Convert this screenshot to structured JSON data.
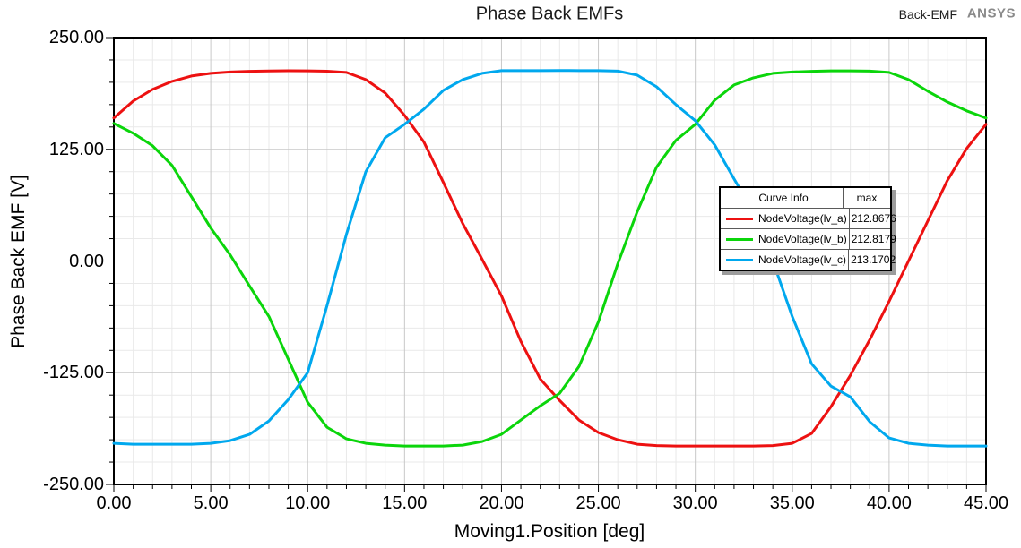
{
  "header": {
    "title": "Phase Back EMFs",
    "design_label": "Back-EMF",
    "brand": "ANSYS",
    "brand_color": "#8a8a8a"
  },
  "chart_data": {
    "type": "line",
    "title": "Phase Back EMFs",
    "xlabel": "Moving1.Position [deg]",
    "ylabel": "Phase Back EMF [V]",
    "xlim": [
      0,
      45
    ],
    "ylim": [
      -250,
      250
    ],
    "x_tick_values": [
      0,
      5,
      10,
      15,
      20,
      25,
      30,
      35,
      40,
      45
    ],
    "x_tick_labels": [
      "0.00",
      "5.00",
      "10.00",
      "15.00",
      "20.00",
      "25.00",
      "30.00",
      "35.00",
      "40.00",
      "45.00"
    ],
    "y_tick_values": [
      250,
      125,
      0,
      -125,
      -250
    ],
    "y_tick_labels": [
      "250.00",
      "125.00",
      "0.00",
      "-125.00",
      "-250.00"
    ],
    "grid": {
      "on": true,
      "minor_x_step": 1,
      "minor_y_step": 25,
      "major_x_step": 5,
      "major_y_step": 125,
      "minor_color": "#e9e9e9",
      "major_color": "#c8c8c8"
    },
    "legend": {
      "position": "middle-right",
      "header_curve": "Curve Info",
      "header_max": "max"
    },
    "x_start": 0,
    "x_step": 1,
    "series": [
      {
        "name": "NodeVoltage(lv_a)",
        "color": "#ed1111",
        "max": "212.8676",
        "values": [
          160,
          179,
          192,
          201,
          207,
          210,
          211.5,
          212.3,
          212.7,
          212.9,
          212.8,
          212.4,
          211,
          203,
          188,
          163,
          133,
          88,
          42,
          2,
          -39,
          -90,
          -132,
          -156,
          -178,
          -192,
          -200,
          -205,
          -206.5,
          -207,
          -207,
          -207,
          -207,
          -207,
          -206.5,
          -204,
          -193,
          -163,
          -128,
          -88,
          -45,
          0,
          45,
          90,
          126,
          153
        ]
      },
      {
        "name": "NodeVoltage(lv_b)",
        "color": "#0bd50b",
        "max": "212.8179",
        "values": [
          154,
          143,
          129,
          107,
          72,
          37,
          7,
          -28,
          -62,
          -110,
          -158,
          -186,
          -199,
          -204,
          -206,
          -207,
          -207,
          -207,
          -206,
          -202,
          -194,
          -178,
          -162,
          -148,
          -118,
          -68,
          -3,
          55,
          105,
          135,
          153,
          180,
          197,
          205,
          210,
          211.5,
          212.3,
          212.8,
          212.8,
          212.5,
          211,
          203,
          190,
          178,
          168,
          160
        ]
      },
      {
        "name": "NodeVoltage(lv_c)",
        "color": "#00a8ee",
        "max": "213.1702",
        "values": [
          -204,
          -205,
          -205,
          -205,
          -205,
          -204,
          -201,
          -194,
          -179,
          -155,
          -125,
          -50,
          30,
          100,
          138,
          153,
          170,
          191,
          203,
          210,
          213,
          213,
          213,
          213.2,
          213,
          213,
          212.5,
          208,
          195,
          175,
          157,
          130,
          92,
          55,
          0,
          -62,
          -115,
          -140,
          -152,
          -180,
          -198,
          -204,
          -206,
          -207,
          -207,
          -207
        ]
      }
    ]
  }
}
